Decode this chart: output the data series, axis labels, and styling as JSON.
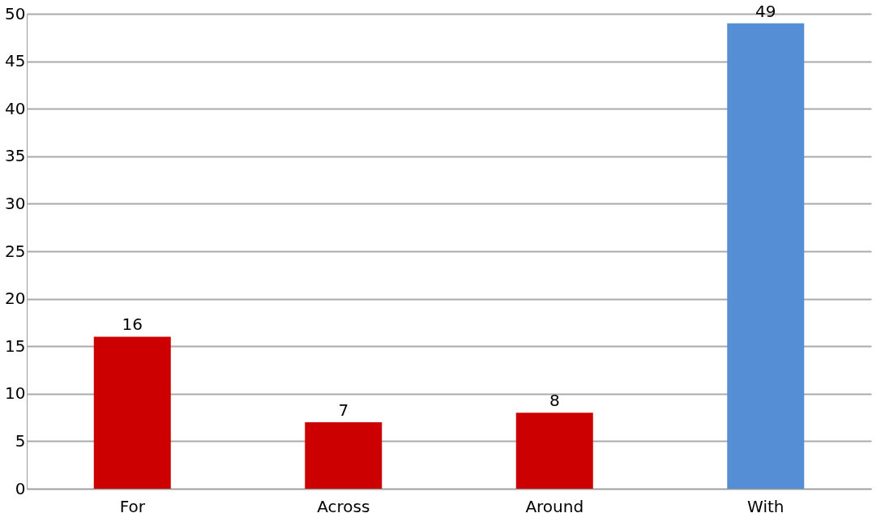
{
  "chart_data": {
    "type": "bar",
    "categories": [
      "For",
      "Across",
      "Around",
      "With"
    ],
    "values": [
      16,
      7,
      8,
      49
    ],
    "colors": [
      "#cc0000",
      "#cc0000",
      "#cc0000",
      "#558ed5"
    ],
    "ylim": [
      0,
      50
    ],
    "yticks": [
      0,
      5,
      10,
      15,
      20,
      25,
      30,
      35,
      40,
      45,
      50
    ],
    "grid": "y",
    "data_labels": true
  }
}
